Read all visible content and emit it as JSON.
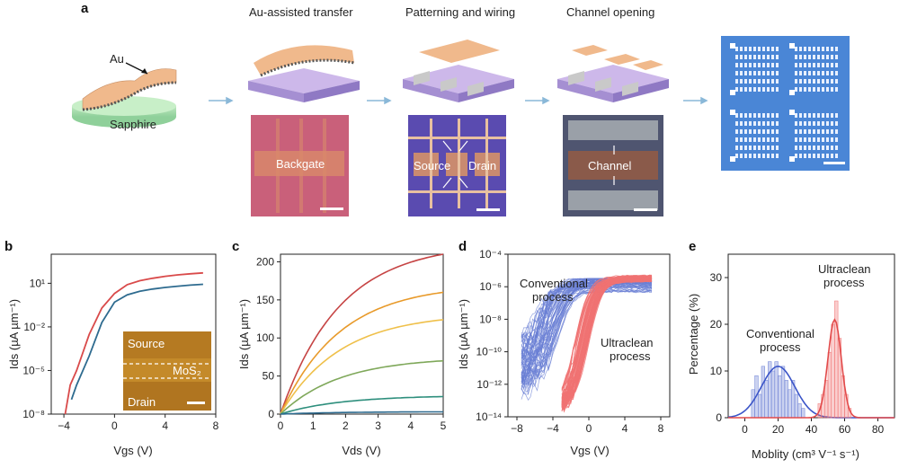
{
  "figure": {
    "panel_a": {
      "label": "a",
      "au_label": "Au",
      "sapphire_label": "Sapphire",
      "steps": [
        {
          "title": "Au-assisted transfer",
          "photo_label": "Backgate"
        },
        {
          "title": "Patterning and wiring",
          "photo_labels": [
            "Source",
            "Drain"
          ]
        },
        {
          "title": "Channel opening",
          "photo_label": "Channel"
        }
      ]
    },
    "panel_b": {
      "label": "b",
      "inset_source": "Source",
      "inset_mos2": "MoS₂",
      "inset_drain": "Drain"
    },
    "panel_c": {
      "label": "c"
    },
    "panel_d": {
      "label": "d",
      "conventional_label": [
        "Conventional",
        "process"
      ],
      "ultraclean_label": [
        "Ultraclean",
        "process"
      ]
    },
    "panel_e": {
      "label": "e",
      "conventional_label": [
        "Conventional",
        "process"
      ],
      "ultraclean_label": [
        "Ultraclean",
        "process"
      ]
    },
    "colors": {
      "red": "#d94a4a",
      "blue": "#2e6b8f",
      "conventional": "#6a7fd4",
      "ultraclean": "#f07272"
    }
  },
  "chart_data": [
    {
      "panel": "b",
      "type": "line",
      "xlabel": "Vgs (V)",
      "ylabel": "Ids (µA µm⁻¹)",
      "yscale": "log",
      "xlim": [
        -5,
        8
      ],
      "ylim": [
        1e-08,
        1000
      ],
      "xticks": [
        "−4",
        "0",
        "4",
        "8"
      ],
      "yticks": [
        "10⁻⁸",
        "10⁻⁵",
        "10⁻²",
        "10¹"
      ],
      "series": [
        {
          "color": "red",
          "x": [
            -3.9,
            -3.5,
            -3,
            -2,
            -1,
            0,
            1,
            2,
            3,
            4,
            5,
            6,
            7
          ],
          "y": [
            1e-08,
            1e-06,
            1e-05,
            0.003,
            0.2,
            2,
            8,
            15,
            22,
            30,
            38,
            45,
            52
          ]
        },
        {
          "color": "blue",
          "x": [
            -3.4,
            -3,
            -2,
            -1,
            0,
            1,
            2,
            3,
            4,
            5,
            6,
            7
          ],
          "y": [
            1e-07,
            1e-06,
            0.0001,
            0.02,
            0.5,
            1.6,
            2.8,
            4,
            5.2,
            6.3,
            7.5,
            8.5
          ]
        }
      ]
    },
    {
      "panel": "c",
      "type": "line",
      "xlabel": "Vds (V)",
      "ylabel": "Ids (µA µm⁻¹)",
      "xlim": [
        0,
        5
      ],
      "ylim": [
        0,
        210
      ],
      "xticks": [
        "0",
        "1",
        "2",
        "3",
        "4",
        "5"
      ],
      "yticks": [
        "0",
        "50",
        "100",
        "150",
        "200"
      ],
      "series": [
        {
          "color": "#c64444",
          "sat": 210
        },
        {
          "color": "#e89a2a",
          "sat": 160
        },
        {
          "color": "#efc04a",
          "sat": 124
        },
        {
          "color": "#7fa85a",
          "sat": 70
        },
        {
          "color": "#2e8f7d",
          "sat": 23
        },
        {
          "color": "#2e6b8f",
          "sat": 3
        }
      ]
    },
    {
      "panel": "d",
      "type": "line",
      "xlabel": "Vgs (V)",
      "ylabel": "Ids (µA µm⁻¹)",
      "yscale": "log",
      "xlim": [
        -9,
        9
      ],
      "ylim": [
        1e-14,
        0.0001
      ],
      "xticks": [
        "−8",
        "−4",
        "0",
        "4",
        "8"
      ],
      "yticks": [
        "10⁻¹⁴",
        "10⁻¹²",
        "10⁻¹⁰",
        "10⁻⁸",
        "10⁻⁶",
        "10⁻⁴"
      ]
    },
    {
      "panel": "e",
      "type": "bar",
      "xlabel": "Moblity (cm³ V⁻¹ s⁻¹)",
      "ylabel": "Percentage (%)",
      "xlim": [
        -10,
        90
      ],
      "ylim": [
        0,
        35
      ],
      "xticks": [
        "0",
        "20",
        "40",
        "60",
        "80"
      ],
      "yticks": [
        "0",
        "10",
        "20",
        "30"
      ],
      "series": [
        {
          "name": "Conventional process",
          "bin_width": 2,
          "bins": [
            [
              4,
              6
            ],
            [
              6,
              9
            ],
            [
              8,
              5
            ],
            [
              10,
              11
            ],
            [
              12,
              8
            ],
            [
              14,
              12
            ],
            [
              16,
              10
            ],
            [
              18,
              12
            ],
            [
              20,
              9
            ],
            [
              22,
              11
            ],
            [
              24,
              8
            ],
            [
              26,
              6
            ],
            [
              28,
              8
            ],
            [
              30,
              5
            ],
            [
              32,
              3
            ],
            [
              34,
              2
            ]
          ],
          "fit_mean": 20,
          "fit_sd": 10,
          "fit_peak": 11
        },
        {
          "name": "Ultraclean process",
          "bin_width": 2,
          "bins": [
            [
              44,
              3
            ],
            [
              46,
              5
            ],
            [
              48,
              8
            ],
            [
              50,
              14
            ],
            [
              52,
              20
            ],
            [
              54,
              25
            ],
            [
              56,
              17
            ],
            [
              58,
              9
            ],
            [
              60,
              5
            ],
            [
              62,
              2
            ]
          ],
          "fit_mean": 54,
          "fit_sd": 4,
          "fit_peak": 21
        }
      ]
    }
  ]
}
